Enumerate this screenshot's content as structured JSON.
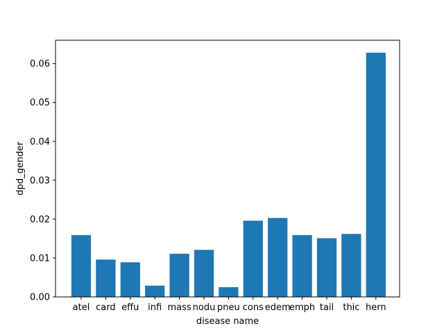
{
  "chart_data": {
    "type": "bar",
    "title": "",
    "xlabel": "disease name",
    "ylabel": "dpd_gender",
    "categories": [
      "atel",
      "card",
      "effu",
      "infi",
      "mass",
      "nodu",
      "pneu",
      "cons",
      "edem",
      "emph",
      "tail",
      "thic",
      "hern"
    ],
    "values": [
      0.0159,
      0.0096,
      0.0089,
      0.0029,
      0.0111,
      0.0121,
      0.0025,
      0.0196,
      0.0203,
      0.0159,
      0.0151,
      0.0162,
      0.0628
    ],
    "ylim": [
      0,
      0.066
    ],
    "yticks": [
      0.0,
      0.01,
      0.02,
      0.03,
      0.04,
      0.05,
      0.06
    ],
    "ytick_labels": [
      "0.00",
      "0.01",
      "0.02",
      "0.03",
      "0.04",
      "0.05",
      "0.06"
    ],
    "grid": false,
    "bar_color": "#1f77b4"
  }
}
